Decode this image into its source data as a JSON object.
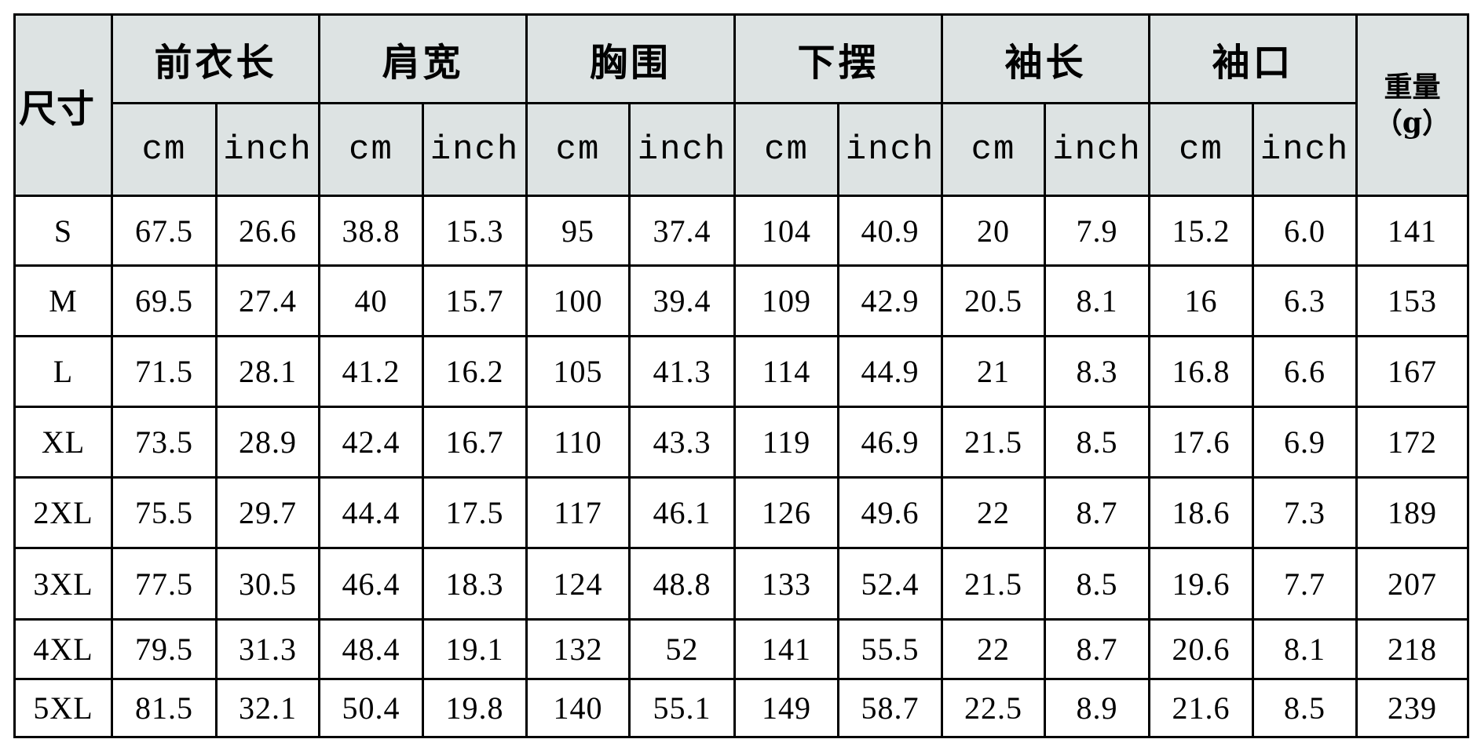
{
  "header": {
    "size_label": "尺寸",
    "groups": [
      "前衣长",
      "肩宽",
      "胸围",
      "下摆",
      "袖长",
      "袖口"
    ],
    "unit_cm": "cm",
    "unit_inch": "inch",
    "weight_label": "重量",
    "weight_unit": "（g）"
  },
  "colors": {
    "header_bg": "#dde3e3",
    "border": "#000000"
  },
  "rows": [
    {
      "size": "S",
      "values": [
        "67.5",
        "26.6",
        "38.8",
        "15.3",
        "95",
        "37.4",
        "104",
        "40.9",
        "20",
        "7.9",
        "15.2",
        "6.0"
      ],
      "weight": "141"
    },
    {
      "size": "M",
      "values": [
        "69.5",
        "27.4",
        "40",
        "15.7",
        "100",
        "39.4",
        "109",
        "42.9",
        "20.5",
        "8.1",
        "16",
        "6.3"
      ],
      "weight": "153"
    },
    {
      "size": "L",
      "values": [
        "71.5",
        "28.1",
        "41.2",
        "16.2",
        "105",
        "41.3",
        "114",
        "44.9",
        "21",
        "8.3",
        "16.8",
        "6.6"
      ],
      "weight": "167"
    },
    {
      "size": "XL",
      "values": [
        "73.5",
        "28.9",
        "42.4",
        "16.7",
        "110",
        "43.3",
        "119",
        "46.9",
        "21.5",
        "8.5",
        "17.6",
        "6.9"
      ],
      "weight": "172"
    },
    {
      "size": "2XL",
      "values": [
        "75.5",
        "29.7",
        "44.4",
        "17.5",
        "117",
        "46.1",
        "126",
        "49.6",
        "22",
        "8.7",
        "18.6",
        "7.3"
      ],
      "weight": "189"
    },
    {
      "size": "3XL",
      "values": [
        "77.5",
        "30.5",
        "46.4",
        "18.3",
        "124",
        "48.8",
        "133",
        "52.4",
        "21.5",
        "8.5",
        "19.6",
        "7.7"
      ],
      "weight": "207"
    },
    {
      "size": "4XL",
      "values": [
        "79.5",
        "31.3",
        "48.4",
        "19.1",
        "132",
        "52",
        "141",
        "55.5",
        "22",
        "8.7",
        "20.6",
        "8.1"
      ],
      "weight": "218"
    },
    {
      "size": "5XL",
      "values": [
        "81.5",
        "32.1",
        "50.4",
        "19.8",
        "140",
        "55.1",
        "149",
        "58.7",
        "22.5",
        "8.9",
        "21.6",
        "8.5"
      ],
      "weight": "239"
    }
  ]
}
